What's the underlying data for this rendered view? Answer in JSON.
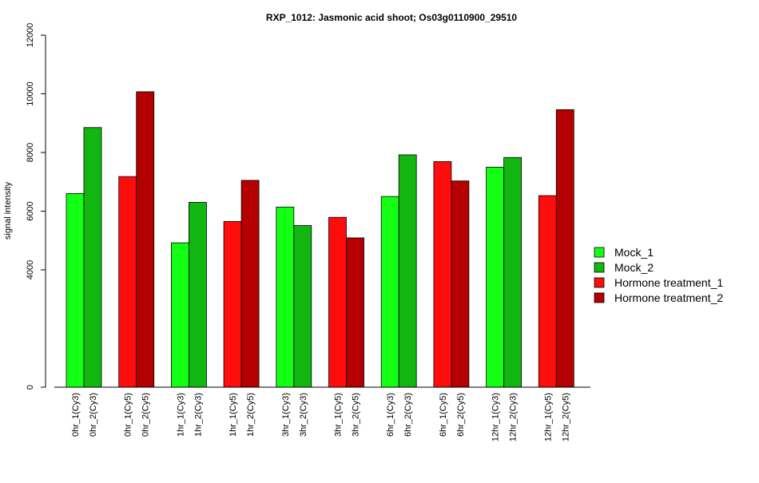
{
  "chart_data": {
    "type": "bar",
    "title": "RXP_1012: Jasmonic acid shoot; Os03g0110900_29510",
    "xlabel": "",
    "ylabel": "signal intensity",
    "ylim": [
      0,
      12000
    ],
    "yticks": [
      0,
      4000,
      6000,
      8000,
      10000,
      12000
    ],
    "grid": false,
    "legend_position": "right",
    "categories": [
      "0hr_1(Cy3)",
      "0hr_2(Cy3)",
      "0hr_1(Cy5)",
      "0hr_2(Cy5)",
      "1hr_1(Cy3)",
      "1hr_2(Cy3)",
      "1hr_1(Cy5)",
      "1hr_2(Cy5)",
      "3hr_1(Cy3)",
      "3hr_2(Cy3)",
      "3hr_1(Cy5)",
      "3hr_2(Cy5)",
      "6hr_1(Cy3)",
      "6hr_2(Cy3)",
      "6hr_1(Cy5)",
      "6hr_2(Cy5)",
      "12hr_1(Cy3)",
      "12hr_2(Cy3)",
      "12hr_1(Cy5)",
      "12hr_2(Cy5)"
    ],
    "values": [
      6600,
      8850,
      7180,
      10070,
      4920,
      6300,
      5650,
      7050,
      6140,
      5510,
      5790,
      5090,
      6500,
      7920,
      7690,
      7030,
      7500,
      7830,
      6530,
      9460
    ],
    "series_index": [
      0,
      1,
      2,
      3,
      0,
      1,
      2,
      3,
      0,
      1,
      2,
      3,
      0,
      1,
      2,
      3,
      0,
      1,
      2,
      3
    ],
    "series": [
      {
        "name": "Mock_1",
        "color": "#13ff13"
      },
      {
        "name": "Mock_2",
        "color": "#11b611"
      },
      {
        "name": "Hormone treatment_1",
        "color": "#ff0d0d"
      },
      {
        "name": "Hormone treatment_2",
        "color": "#b40000"
      }
    ]
  }
}
